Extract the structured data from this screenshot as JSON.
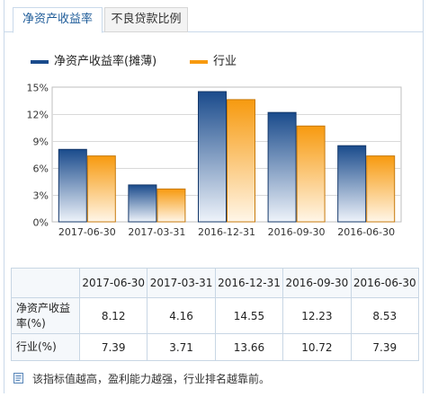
{
  "tabs": [
    {
      "label": "净资产收益率",
      "active": true
    },
    {
      "label": "不良贷款比例",
      "active": false
    }
  ],
  "colors": {
    "series1_top": "#1a4b8c",
    "series1_bottom": "#ffffff",
    "series2_top": "#f79a0f",
    "series2_bottom": "#ffffff",
    "legend1": "#1a4b8c",
    "legend2": "#f79a0f",
    "grid": "#d9d9d9",
    "tab_active": "#1f5c99"
  },
  "chart_data": {
    "type": "bar",
    "categories": [
      "2017-06-30",
      "2017-03-31",
      "2016-12-31",
      "2016-09-30",
      "2016-06-30"
    ],
    "series": [
      {
        "name": "净资产收益率(摊薄)",
        "values": [
          8.12,
          4.16,
          14.55,
          12.23,
          8.53
        ]
      },
      {
        "name": "行业",
        "values": [
          7.39,
          3.71,
          13.66,
          10.72,
          7.39
        ]
      }
    ],
    "yticks": [
      "0%",
      "3%",
      "6%",
      "9%",
      "12%",
      "15%"
    ],
    "ylim": [
      0,
      15
    ],
    "grid": true,
    "legend": "top-left"
  },
  "table": {
    "headers": [
      "",
      "2017-06-30",
      "2017-03-31",
      "2016-12-31",
      "2016-09-30",
      "2016-06-30"
    ],
    "rows": [
      {
        "label": "净资产收益率(%)",
        "values": [
          "8.12",
          "4.16",
          "14.55",
          "12.23",
          "8.53"
        ]
      },
      {
        "label": "行业(%)",
        "values": [
          "7.39",
          "3.71",
          "13.66",
          "10.72",
          "7.39"
        ]
      }
    ]
  },
  "note": {
    "icon": "note-icon",
    "text": "该指标值越高，盈利能力越强，行业排名越靠前。"
  }
}
